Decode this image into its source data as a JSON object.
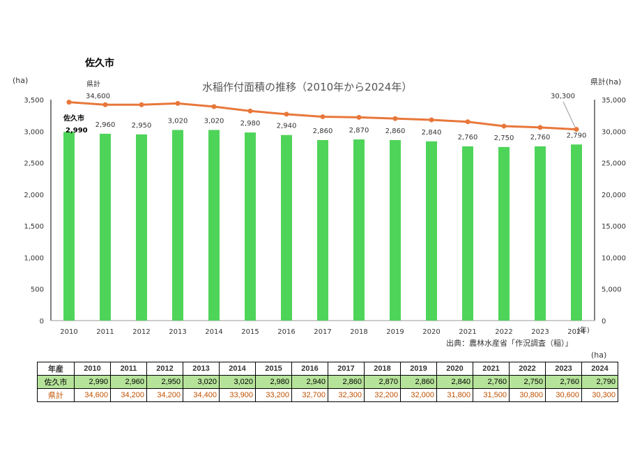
{
  "city_title": "佐久市",
  "chart_data": {
    "type": "bar+line",
    "title": "水稲作付面積の推移（2010年から2024年）",
    "categories": [
      "2010",
      "2011",
      "2012",
      "2013",
      "2014",
      "2015",
      "2016",
      "2017",
      "2018",
      "2019",
      "2020",
      "2021",
      "2022",
      "2023",
      "2024"
    ],
    "x_unit": "(年)",
    "y_left_unit": "(ha)",
    "y_right_unit": "県計(ha)",
    "y_left_lim": [
      0,
      3500
    ],
    "y_left_ticks": [
      0,
      500,
      1000,
      1500,
      2000,
      2500,
      3000,
      3500
    ],
    "y_left_tick_labels": [
      "0",
      "500",
      "1,000",
      "1,500",
      "2,000",
      "2,500",
      "3,000",
      "3,500"
    ],
    "y_right_lim": [
      0,
      35000
    ],
    "y_right_ticks": [
      0,
      5000,
      10000,
      15000,
      20000,
      25000,
      30000,
      35000
    ],
    "y_right_tick_labels": [
      "0",
      "5,000",
      "10,000",
      "15,000",
      "20,000",
      "25,000",
      "30,000",
      "35,000"
    ],
    "series": [
      {
        "name": "佐久市",
        "kind": "bar",
        "axis": "left",
        "color": "#4fd45a",
        "values": [
          2990,
          2960,
          2950,
          3020,
          3020,
          2980,
          2940,
          2860,
          2870,
          2860,
          2840,
          2760,
          2750,
          2760,
          2790
        ],
        "labels": [
          "2,990",
          "2,960",
          "2,950",
          "3,020",
          "3,020",
          "2,980",
          "2,940",
          "2,860",
          "2,870",
          "2,860",
          "2,840",
          "2,760",
          "2,750",
          "2,760",
          "2,790"
        ]
      },
      {
        "name": "県計",
        "kind": "line",
        "axis": "right",
        "color": "#e8773a",
        "values": [
          34600,
          34200,
          34200,
          34400,
          33900,
          33200,
          32700,
          32300,
          32200,
          32000,
          31800,
          31500,
          30800,
          30600,
          30300
        ]
      }
    ],
    "annotations": {
      "pref_first_label": "34,600",
      "pref_last_label": "30,300",
      "pref_series_label": "県計",
      "city_series_label": "佐久市"
    }
  },
  "source": "出典：農林水産省「作況調査（稲）」",
  "table": {
    "unit": "(ha)",
    "header_label": "年産",
    "years": [
      "2010",
      "2011",
      "2012",
      "2013",
      "2014",
      "2015",
      "2016",
      "2017",
      "2018",
      "2019",
      "2020",
      "2021",
      "2022",
      "2023",
      "2024"
    ],
    "rows": [
      {
        "label": "佐久市",
        "values": [
          "2,990",
          "2,960",
          "2,950",
          "3,020",
          "3,020",
          "2,980",
          "2,940",
          "2,860",
          "2,870",
          "2,860",
          "2,840",
          "2,760",
          "2,750",
          "2,760",
          "2,790"
        ]
      },
      {
        "label": "県計",
        "values": [
          "34,600",
          "34,200",
          "34,200",
          "34,400",
          "33,900",
          "33,200",
          "32,700",
          "32,300",
          "32,200",
          "32,000",
          "31,800",
          "31,500",
          "30,800",
          "30,600",
          "30,300"
        ]
      }
    ]
  }
}
